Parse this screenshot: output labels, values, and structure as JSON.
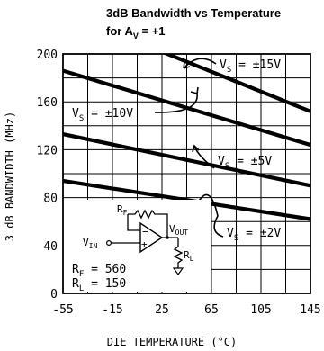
{
  "chart_data": {
    "type": "line",
    "title": "3dB Bandwidth vs Temperature",
    "subtitle": {
      "prefix": "for A",
      "sub": "V",
      "suffix": " = +1"
    },
    "xlabel": "DIE TEMPERATURE (°C)",
    "ylabel": "3 dB BANDWIDTH (MHz)",
    "xlim": [
      -55,
      145
    ],
    "ylim": [
      0,
      200
    ],
    "x_ticks": [
      "-55",
      "-15",
      "25",
      "65",
      "105",
      "145"
    ],
    "y_ticks": [
      "0",
      "40",
      "80",
      "120",
      "160",
      "200"
    ],
    "x_tick_values": [
      -55,
      -15,
      25,
      65,
      105,
      145
    ],
    "y_tick_values": [
      0,
      40,
      80,
      120,
      160,
      200
    ],
    "grid": true,
    "series": [
      {
        "label_main": "V",
        "label_sub": "S",
        "label_value": " = ±15V",
        "x": [
          -55,
          145
        ],
        "y": [
          235,
          152
        ]
      },
      {
        "label_main": "V",
        "label_sub": "S",
        "label_value": " = ±10V",
        "x": [
          -55,
          145
        ],
        "y": [
          186,
          124
        ]
      },
      {
        "label_main": "V",
        "label_sub": "S",
        "label_value": " = ±5V",
        "x": [
          -55,
          145
        ],
        "y": [
          133,
          90
        ]
      },
      {
        "label_main": "V",
        "label_sub": "S",
        "label_value": " = ±2V",
        "x": [
          -55,
          145
        ],
        "y": [
          94,
          62
        ]
      }
    ],
    "circuit": {
      "rf_main": "R",
      "rf_sub": "F",
      "vout_main": "V",
      "vout_sub": "OUT",
      "vin_main": "V",
      "vin_sub": "IN",
      "rl_main": "R",
      "rl_sub": "L",
      "minus": "−",
      "plus": "+",
      "rf_value_main": "R",
      "rf_value_sub": "F",
      "rf_value": " = 560",
      "rl_value_main": "R",
      "rl_value_sub": "L",
      "rl_value": " = 150"
    }
  }
}
